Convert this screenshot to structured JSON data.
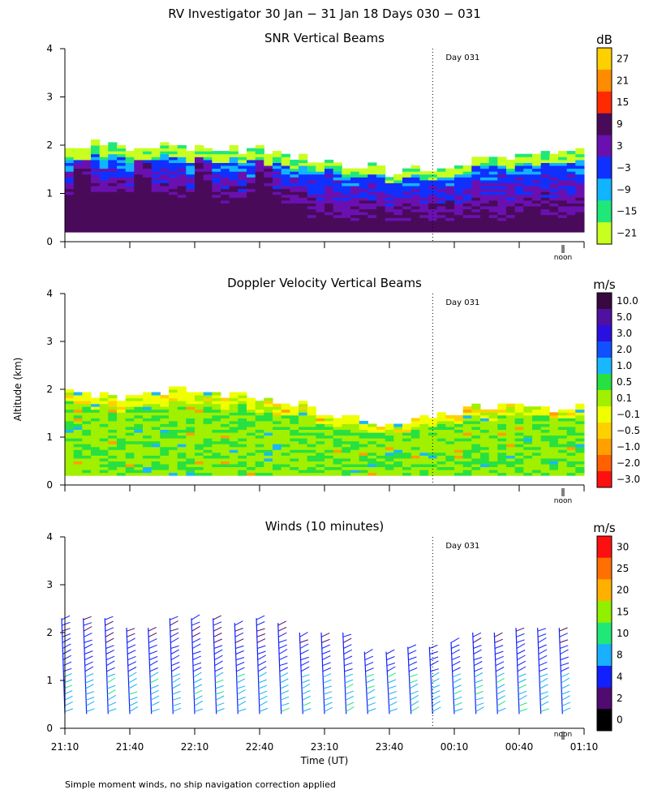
{
  "title": "RV Investigator  30 Jan − 31 Jan 18 Days 030 − 031",
  "ylabel": "Altitude (km)",
  "xlabel": "Time (UT)",
  "footnote": "Simple moment winds, no ship navigation correction applied",
  "day_marker_label": "Day 031",
  "noon_label": "noon",
  "x_ticks": [
    "21:10",
    "21:40",
    "22:10",
    "22:40",
    "23:10",
    "23:40",
    "00:10",
    "00:40",
    "01:10"
  ],
  "y_ticks": [
    "0",
    "1",
    "2",
    "3",
    "4"
  ],
  "chart_data": [
    {
      "type": "heatmap",
      "title": "SNR Vertical Beams",
      "unit": "dB",
      "ylim": [
        0,
        4
      ],
      "x_range": [
        "21:10",
        "01:10"
      ],
      "day_boundary": "00:00",
      "colorbar": {
        "labels": [
          "27",
          "21",
          "15",
          "9",
          "3",
          "−3",
          "−9",
          "−15",
          "−21"
        ],
        "colors": [
          "#ffd000",
          "#ff8c00",
          "#ff2a00",
          "#4a0a5a",
          "#6a10b0",
          "#1030ff",
          "#10b4ff",
          "#20e878",
          "#c8ff20"
        ]
      },
      "layer_top_km": [
        1.9,
        2.0,
        1.9,
        2.0,
        1.9,
        1.9,
        1.9,
        1.8,
        1.7,
        1.6,
        1.5,
        1.4,
        1.5,
        1.6,
        1.7,
        1.75,
        1.8,
        1.85
      ]
    },
    {
      "type": "heatmap",
      "title": "Doppler Velocity Vertical Beams",
      "unit": "m/s",
      "ylim": [
        0,
        4
      ],
      "x_range": [
        "21:10",
        "01:10"
      ],
      "day_boundary": "00:00",
      "colorbar": {
        "labels": [
          "10.0",
          "5.0",
          "3.0",
          "2.0",
          "1.0",
          "0.5",
          "0.1",
          "−0.1",
          "−0.5",
          "−1.0",
          "−2.0",
          "−3.0"
        ],
        "colors": [
          "#3a0840",
          "#5010a0",
          "#2a10e0",
          "#1050ff",
          "#18b8ff",
          "#28e040",
          "#a0f000",
          "#f0ff00",
          "#ffd000",
          "#ffa000",
          "#ff6000",
          "#ff1010"
        ]
      },
      "layer_top_km": [
        1.95,
        1.85,
        1.8,
        1.9,
        1.95,
        1.9,
        1.8,
        1.75,
        1.6,
        1.4,
        1.3,
        1.25,
        1.4,
        1.5,
        1.6,
        1.6,
        1.6,
        1.65
      ]
    },
    {
      "type": "scatter",
      "title": "Winds (10 minutes)",
      "unit": "m/s",
      "ylim": [
        0,
        4
      ],
      "x_range": [
        "21:10",
        "01:10"
      ],
      "day_boundary": "00:00",
      "colorbar": {
        "labels": [
          "30",
          "25",
          "20",
          "15",
          "10",
          "8",
          "4",
          "2",
          "0"
        ],
        "colors": [
          "#ff1010",
          "#ff7000",
          "#ffb000",
          "#90f000",
          "#20e878",
          "#18b0ff",
          "#1020ff",
          "#500a70",
          "#000000"
        ]
      },
      "profile_times": [
        "21:10",
        "21:20",
        "21:30",
        "21:40",
        "21:50",
        "22:00",
        "22:10",
        "22:20",
        "22:30",
        "22:40",
        "22:50",
        "23:00",
        "23:10",
        "23:20",
        "23:30",
        "23:40",
        "23:50",
        "00:00",
        "00:10",
        "00:20",
        "00:30",
        "00:40",
        "00:50",
        "01:00"
      ],
      "profile_top_km": [
        2.3,
        2.3,
        2.3,
        2.1,
        2.1,
        2.3,
        2.3,
        2.3,
        2.2,
        2.3,
        2.2,
        2.0,
        2.0,
        2.0,
        1.6,
        1.6,
        1.7,
        1.7,
        1.8,
        2.0,
        2.0,
        2.1,
        2.1,
        2.1
      ]
    }
  ]
}
